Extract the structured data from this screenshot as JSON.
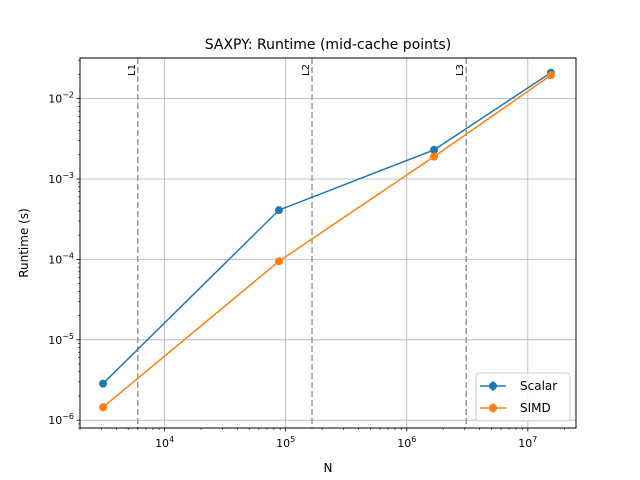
{
  "chart_data": {
    "type": "line",
    "title": "SAXPY: Runtime (mid-cache points)",
    "xlabel": "N",
    "ylabel": "Runtime (s)",
    "xscale": "log",
    "yscale": "log",
    "xlim": [
      2000,
      25000000
    ],
    "ylim": [
      8e-07,
      0.032
    ],
    "grid": true,
    "legend_position": "lower-right",
    "x_ticks": [
      {
        "value": 10000,
        "base": "10",
        "exp": "4"
      },
      {
        "value": 100000,
        "base": "10",
        "exp": "5"
      },
      {
        "value": 1000000,
        "base": "10",
        "exp": "6"
      },
      {
        "value": 10000000,
        "base": "10",
        "exp": "7"
      }
    ],
    "y_ticks": [
      {
        "value": 1e-06,
        "base": "10",
        "exp": "−6"
      },
      {
        "value": 1e-05,
        "base": "10",
        "exp": "−5"
      },
      {
        "value": 0.0001,
        "base": "10",
        "exp": "−4"
      },
      {
        "value": 0.001,
        "base": "10",
        "exp": "−3"
      },
      {
        "value": 0.01,
        "base": "10",
        "exp": "−2"
      }
    ],
    "cache_lines": [
      {
        "label": "L1",
        "x": 6000
      },
      {
        "label": "L2",
        "x": 165000
      },
      {
        "label": "L3",
        "x": 3100000
      }
    ],
    "series": [
      {
        "name": "Scalar",
        "color": "#1f77b4",
        "x": [
          3100,
          88000,
          1680000,
          15500000
        ],
        "y": [
          2.85e-06,
          0.00041,
          0.0023,
          0.021
        ]
      },
      {
        "name": "SIMD",
        "color": "#ff7f0e",
        "x": [
          3100,
          88000,
          1680000,
          15500000
        ],
        "y": [
          1.45e-06,
          9.5e-05,
          0.0019,
          0.0195
        ]
      }
    ]
  }
}
